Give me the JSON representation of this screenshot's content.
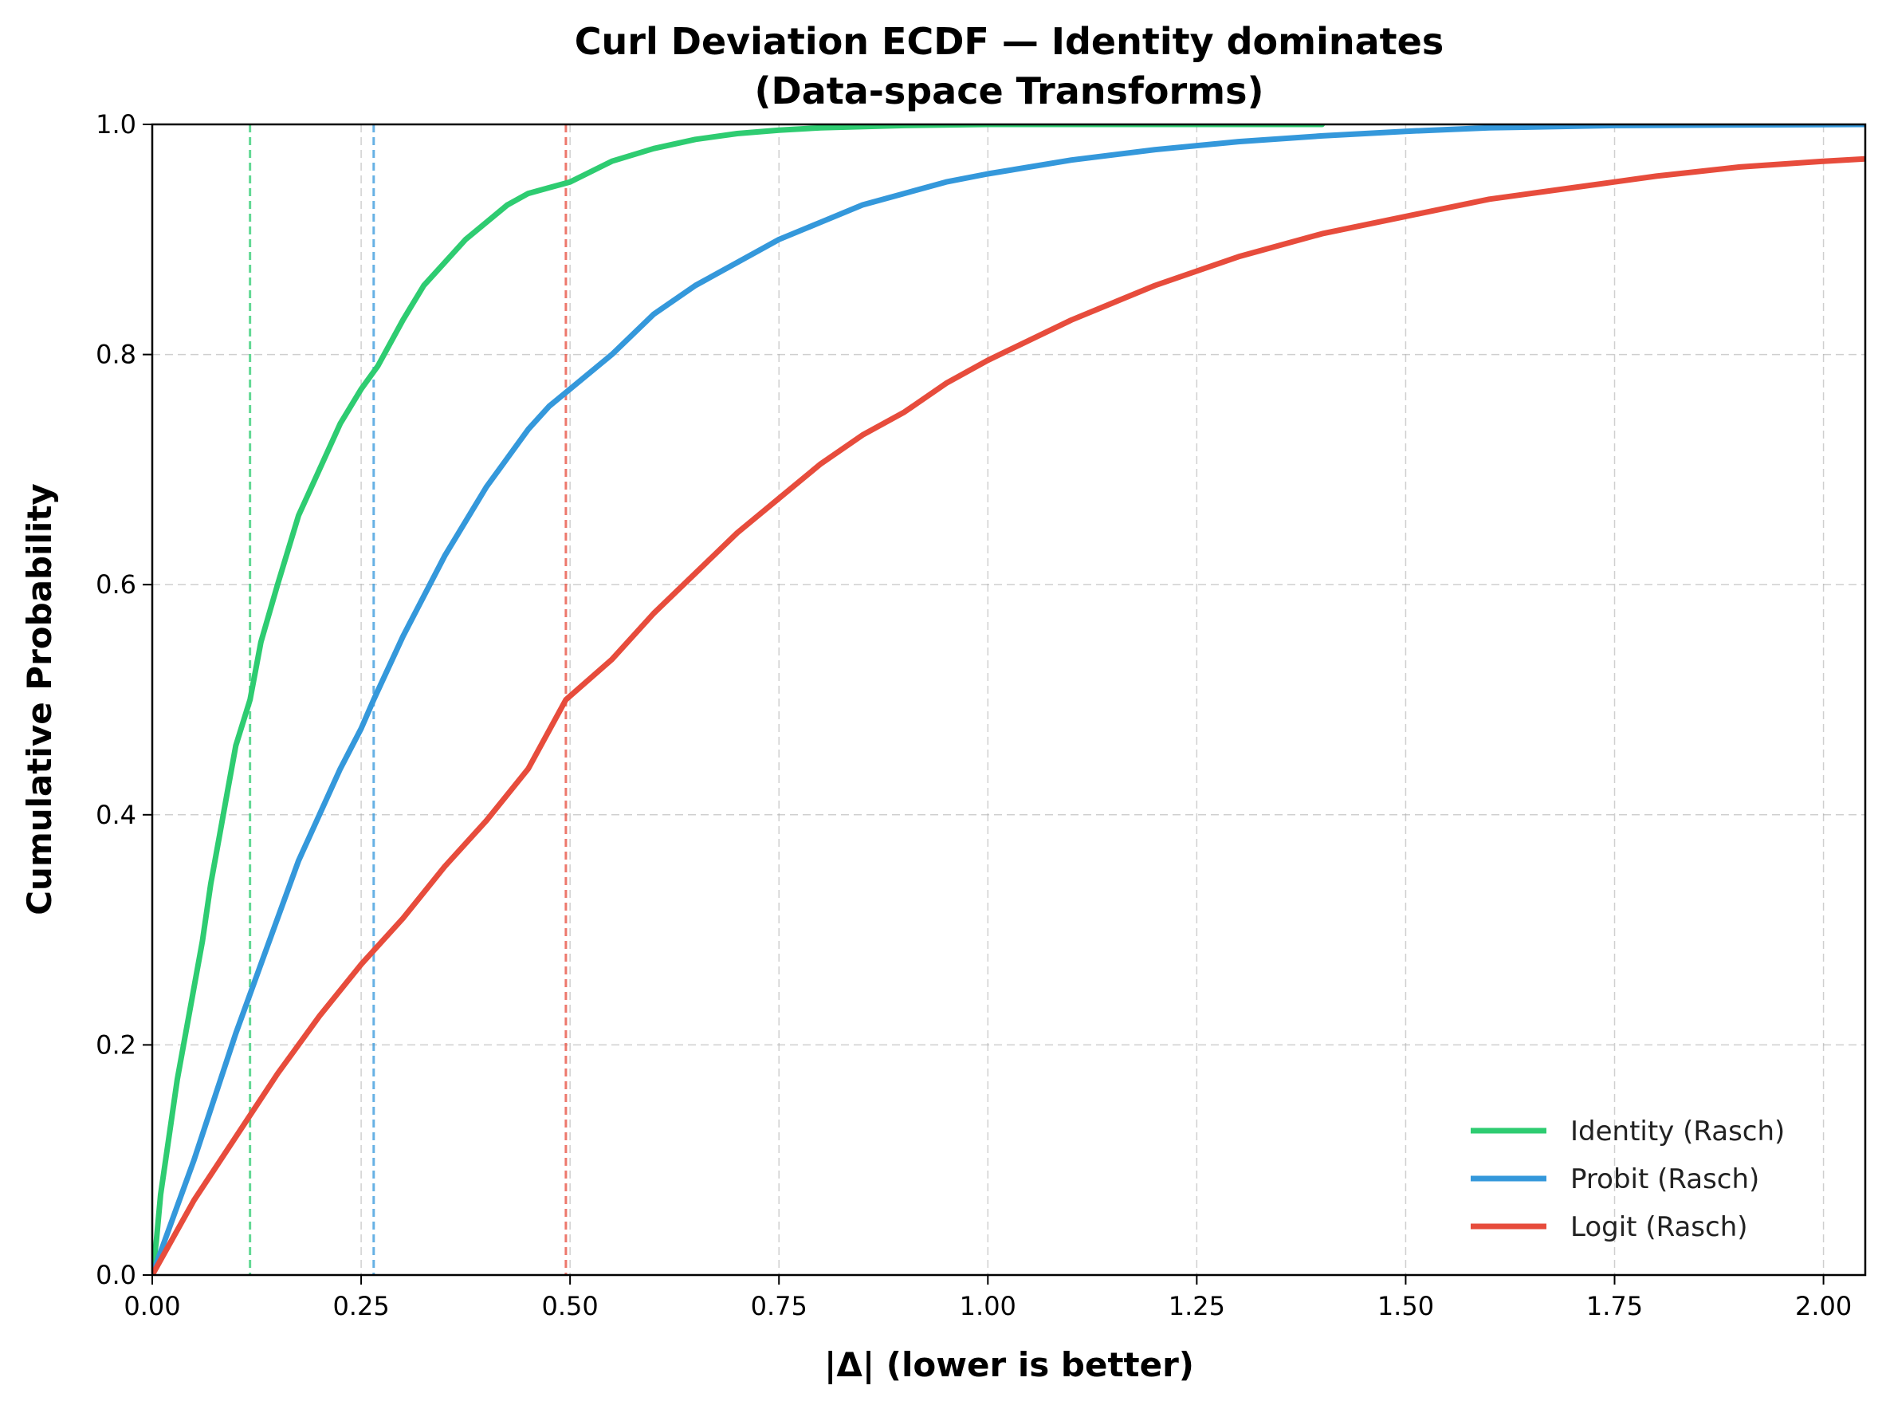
{
  "chart_data": {
    "type": "line",
    "title": "Curl Deviation ECDF — Identity dominates",
    "subtitle": "(Data-space Transforms)",
    "xlabel": "|Δ| (lower is better)",
    "ylabel": "Cumulative Probability",
    "xlim": [
      0,
      2.05
    ],
    "ylim": [
      0,
      1.0
    ],
    "xticks": [
      "0.00",
      "0.25",
      "0.50",
      "0.75",
      "1.00",
      "1.25",
      "1.50",
      "1.75",
      "2.00"
    ],
    "yticks": [
      "0.0",
      "0.2",
      "0.4",
      "0.6",
      "0.8",
      "1.0"
    ],
    "grid": true,
    "legend_position": "bottom-right",
    "series": [
      {
        "name": "Identity (Rasch)",
        "color": "#2ecc71",
        "median": 0.117,
        "x": [
          0,
          0.005,
          0.01,
          0.02,
          0.03,
          0.04,
          0.05,
          0.06,
          0.07,
          0.08,
          0.09,
          0.1,
          0.117,
          0.13,
          0.15,
          0.175,
          0.2,
          0.225,
          0.25,
          0.27,
          0.3,
          0.325,
          0.35,
          0.375,
          0.4,
          0.425,
          0.45,
          0.475,
          0.5,
          0.55,
          0.6,
          0.65,
          0.7,
          0.75,
          0.8,
          0.9,
          1.0,
          1.2,
          1.4
        ],
        "y": [
          0.0,
          0.03,
          0.07,
          0.12,
          0.17,
          0.21,
          0.25,
          0.29,
          0.34,
          0.38,
          0.42,
          0.46,
          0.5,
          0.55,
          0.6,
          0.66,
          0.7,
          0.74,
          0.77,
          0.79,
          0.83,
          0.86,
          0.88,
          0.9,
          0.915,
          0.93,
          0.94,
          0.945,
          0.95,
          0.968,
          0.979,
          0.987,
          0.992,
          0.995,
          0.997,
          0.999,
          1.0,
          1.0,
          1.0
        ]
      },
      {
        "name": "Probit (Rasch)",
        "color": "#3498db",
        "median": 0.265,
        "x": [
          0,
          0.025,
          0.05,
          0.075,
          0.1,
          0.125,
          0.15,
          0.175,
          0.2,
          0.225,
          0.25,
          0.265,
          0.3,
          0.325,
          0.35,
          0.375,
          0.4,
          0.425,
          0.45,
          0.475,
          0.5,
          0.55,
          0.6,
          0.65,
          0.7,
          0.75,
          0.8,
          0.85,
          0.9,
          0.95,
          1.0,
          1.1,
          1.2,
          1.3,
          1.4,
          1.5,
          1.6,
          1.75,
          2.05
        ],
        "y": [
          0.0,
          0.05,
          0.1,
          0.155,
          0.21,
          0.26,
          0.31,
          0.36,
          0.4,
          0.44,
          0.475,
          0.5,
          0.555,
          0.59,
          0.625,
          0.655,
          0.685,
          0.71,
          0.735,
          0.755,
          0.77,
          0.8,
          0.835,
          0.86,
          0.88,
          0.9,
          0.915,
          0.93,
          0.94,
          0.95,
          0.957,
          0.969,
          0.978,
          0.985,
          0.99,
          0.994,
          0.997,
          0.999,
          1.0
        ]
      },
      {
        "name": "Logit (Rasch)",
        "color": "#e74c3c",
        "median": 0.495,
        "x": [
          0,
          0.05,
          0.1,
          0.15,
          0.2,
          0.25,
          0.3,
          0.35,
          0.4,
          0.45,
          0.495,
          0.55,
          0.6,
          0.65,
          0.7,
          0.75,
          0.8,
          0.85,
          0.9,
          0.95,
          1.0,
          1.1,
          1.2,
          1.3,
          1.4,
          1.5,
          1.6,
          1.7,
          1.8,
          1.9,
          2.0,
          2.05
        ],
        "y": [
          0.0,
          0.065,
          0.12,
          0.175,
          0.225,
          0.27,
          0.31,
          0.355,
          0.395,
          0.44,
          0.5,
          0.535,
          0.575,
          0.61,
          0.645,
          0.675,
          0.705,
          0.73,
          0.75,
          0.775,
          0.795,
          0.83,
          0.86,
          0.885,
          0.905,
          0.92,
          0.935,
          0.945,
          0.955,
          0.963,
          0.968,
          0.97
        ]
      }
    ]
  }
}
